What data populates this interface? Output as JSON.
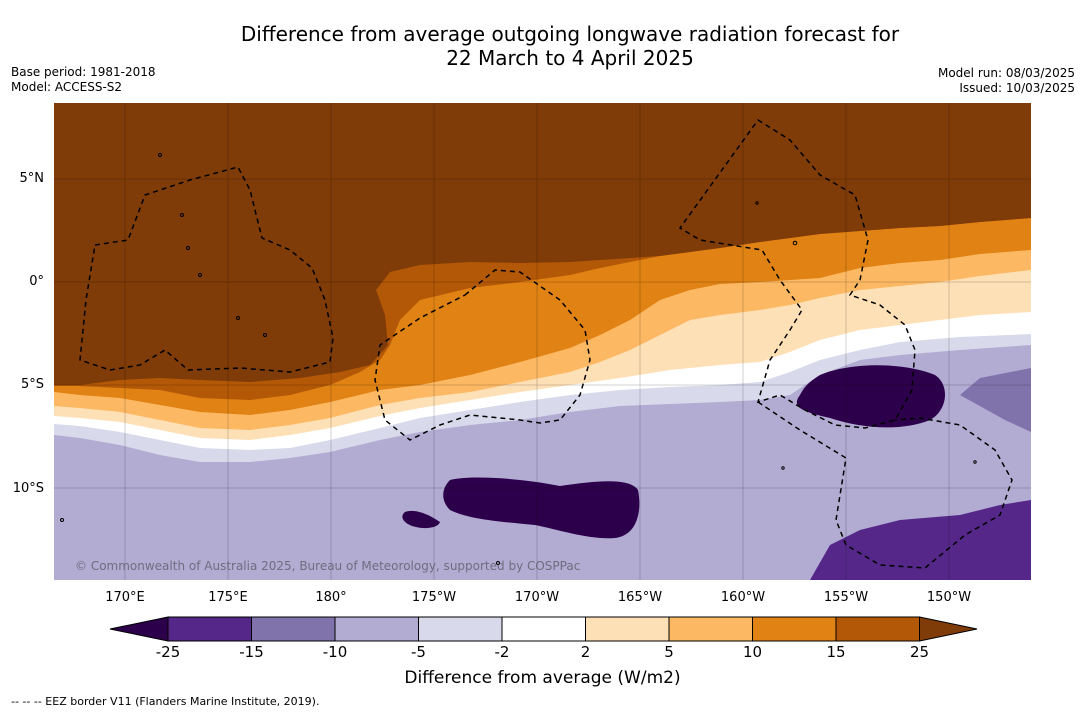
{
  "title": {
    "line1": "Difference from average outgoing longwave radiation forecast for",
    "line2": "22 March to 4 April 2025"
  },
  "meta": {
    "base_period": "Base period: 1981-2018",
    "model": "Model: ACCESS-S2",
    "model_run": "Model run: 08/03/2025",
    "issued": "Issued: 10/03/2025"
  },
  "map": {
    "lat_labels": [
      "5°N",
      "0°",
      "5°S",
      "10°S"
    ],
    "lon_labels": [
      "170°E",
      "175°E",
      "180°",
      "175°W",
      "170°W",
      "165°W",
      "160°W",
      "155°W",
      "150°W"
    ],
    "copyright": "© Commonwealth of Australia 2025, Bureau of Meteorology, supported by COSPPac"
  },
  "colorbar": {
    "ticks": [
      "-25",
      "-15",
      "-10",
      "-5",
      "-2",
      "2",
      "5",
      "10",
      "15",
      "25"
    ],
    "colors": [
      "#2d004b",
      "#542788",
      "#8073ac",
      "#b2abd2",
      "#d8daeb",
      "#ffffff",
      "#fee0b6",
      "#fdb863",
      "#e08214",
      "#b35806",
      "#7f3b08"
    ],
    "title": "Difference from average (W/m2)"
  },
  "legend_note": "--  --  -- EEZ border V11 (Flanders Marine Institute, 2019)."
}
